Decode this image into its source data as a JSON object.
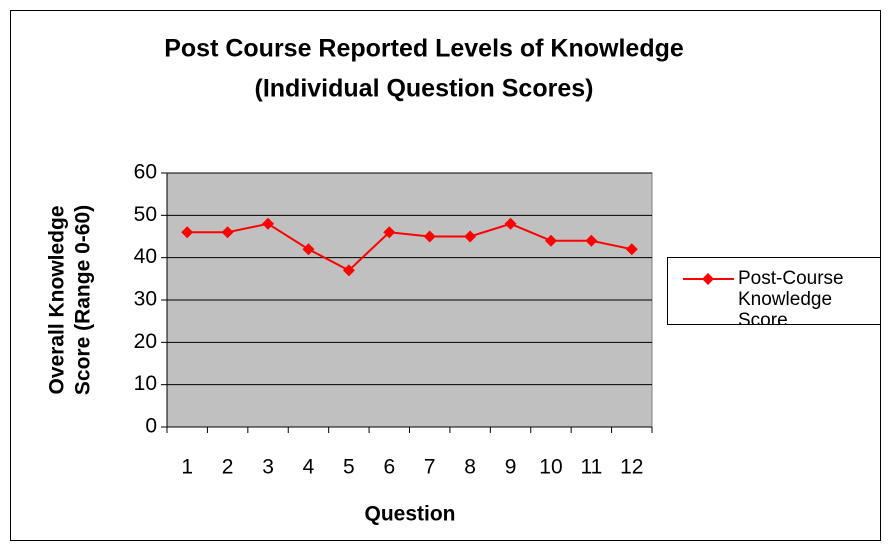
{
  "chart_data": {
    "type": "line",
    "title": [
      "Post Course Reported Levels of Knowledge",
      "(Individual Question Scores)"
    ],
    "y_label": [
      "Overall Knowledge",
      "Score (Range 0-60)"
    ],
    "x_label": "Question",
    "categories": [
      "1",
      "2",
      "3",
      "4",
      "5",
      "6",
      "7",
      "8",
      "9",
      "10",
      "11",
      "12"
    ],
    "series": [
      {
        "name": "Post-Course Knowledge Score",
        "color": "#ff0000",
        "values": [
          46,
          46,
          48,
          42,
          37,
          46,
          45,
          45,
          48,
          44,
          44,
          42
        ]
      }
    ],
    "ylim": [
      0,
      60
    ],
    "yticks": [
      0,
      10,
      20,
      30,
      40,
      50,
      60
    ],
    "grid": true,
    "legend": "right"
  }
}
